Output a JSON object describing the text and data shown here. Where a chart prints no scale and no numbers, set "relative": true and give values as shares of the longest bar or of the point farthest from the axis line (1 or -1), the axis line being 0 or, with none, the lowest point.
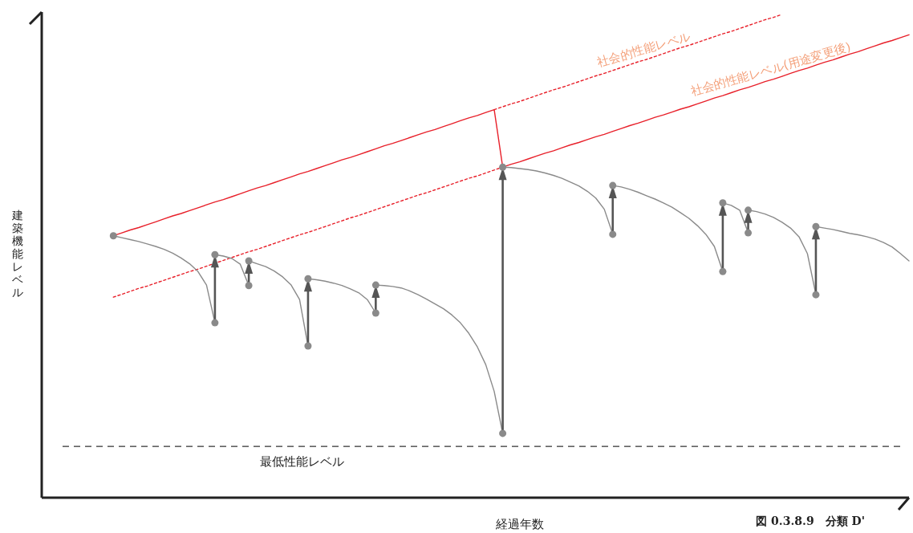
{
  "chart_data": {
    "type": "line",
    "relative": true,
    "xlabel": "経過年数",
    "ylabel": "建築機能レベル",
    "categories": [
      null,
      null,
      null,
      null,
      null,
      null,
      null,
      null,
      null,
      null,
      null,
      null,
      null,
      null,
      null,
      null,
      null,
      null,
      null,
      null,
      null,
      null,
      null,
      null,
      null,
      null,
      null,
      null,
      null,
      null,
      null,
      null,
      null,
      null,
      null,
      null,
      null,
      null,
      null,
      null,
      null,
      null,
      null,
      null,
      null,
      null,
      null,
      null,
      null,
      null,
      null,
      null,
      null,
      null,
      null,
      null,
      null,
      null,
      null,
      null,
      null,
      null,
      null,
      null,
      null,
      null,
      null,
      null,
      null,
      null,
      null,
      null,
      null,
      null,
      null,
      null,
      null,
      null,
      null,
      null,
      null,
      null,
      null,
      null,
      null,
      null,
      null,
      null,
      null,
      null,
      null,
      null,
      null,
      null,
      null,
      null,
      null,
      null,
      null,
      null,
      null
    ],
    "series": [
      {
        "name": "社会的性能レベル(用途変更後)",
        "color": "#e8202a",
        "line_style": "solid",
        "values": [
          null,
          null,
          null,
          null,
          null,
          null,
          0.542,
          0.548,
          0.554,
          0.559,
          0.565,
          0.571,
          0.577,
          0.583,
          0.588,
          0.594,
          0.6,
          0.606,
          0.612,
          0.617,
          0.623,
          0.629,
          0.635,
          0.641,
          0.646,
          0.652,
          0.658,
          0.664,
          0.67,
          0.675,
          0.681,
          0.687,
          0.693,
          0.699,
          0.704,
          0.71,
          0.716,
          0.722,
          0.728,
          0.733,
          0.739,
          0.745,
          0.751,
          0.757,
          0.762,
          0.768,
          0.774,
          0.78,
          0.786,
          0.791,
          0.797,
          0.803,
          0.684,
          0.69,
          0.695,
          0.701,
          0.707,
          0.713,
          0.718,
          0.724,
          0.73,
          0.735,
          0.741,
          0.747,
          0.752,
          0.758,
          0.764,
          0.77,
          0.775,
          0.781,
          0.787,
          0.792,
          0.798,
          0.804,
          0.809,
          0.815,
          0.821,
          0.827,
          0.832,
          0.838,
          0.844,
          0.849,
          0.855,
          0.861,
          0.866,
          0.872,
          0.878,
          0.884,
          0.889,
          0.895,
          0.901,
          0.906,
          0.912,
          0.918,
          0.923,
          0.929,
          0.935,
          0.941,
          0.946,
          0.952,
          0.958
        ]
      },
      {
        "name": "社会的性能レベル",
        "color": "#e8202a",
        "line_style": "dotted",
        "values": [
          null,
          null,
          null,
          null,
          null,
          null,
          null,
          null,
          null,
          null,
          null,
          null,
          null,
          null,
          null,
          null,
          null,
          null,
          null,
          null,
          null,
          null,
          null,
          null,
          null,
          null,
          null,
          null,
          null,
          null,
          null,
          null,
          null,
          null,
          null,
          null,
          null,
          null,
          null,
          null,
          null,
          null,
          null,
          null,
          null,
          null,
          null,
          null,
          null,
          null,
          null,
          0.803,
          0.809,
          0.815,
          0.82,
          0.826,
          0.832,
          0.838,
          0.844,
          0.849,
          0.855,
          0.861,
          0.867,
          0.873,
          0.878,
          0.884,
          0.89,
          0.896,
          0.902,
          0.907,
          0.913,
          0.919,
          0.925,
          0.931,
          0.936,
          0.942,
          0.948,
          0.954,
          0.96,
          0.965,
          0.971,
          0.977,
          0.983,
          0.989,
          0.994,
          1.0,
          null,
          null,
          null,
          null,
          null,
          null,
          null,
          null,
          null,
          null,
          null,
          null,
          null,
          null,
          null
        ]
      },
      {
        "color": "#e8202a",
        "line_style": "dotted",
        "values": [
          null,
          null,
          null,
          null,
          null,
          null,
          0.415,
          0.421,
          0.427,
          0.433,
          0.438,
          0.444,
          0.45,
          0.456,
          0.462,
          0.468,
          0.473,
          0.479,
          0.485,
          0.491,
          0.497,
          0.503,
          0.509,
          0.514,
          0.52,
          0.526,
          0.532,
          0.538,
          0.544,
          0.549,
          0.555,
          0.561,
          0.567,
          0.573,
          0.579,
          0.584,
          0.59,
          0.596,
          0.602,
          0.608,
          0.614,
          0.62,
          0.626,
          0.631,
          0.637,
          0.643,
          0.649,
          0.655,
          0.661,
          0.666,
          0.672,
          0.678,
          0.684,
          null,
          null,
          null,
          null,
          null,
          null,
          null,
          null,
          null,
          null,
          null,
          null,
          null,
          null,
          null,
          null,
          null,
          null,
          null,
          null,
          null,
          null,
          null,
          null,
          null,
          null,
          null,
          null,
          null,
          null,
          null,
          null,
          null,
          null,
          null,
          null,
          null,
          null,
          null,
          null,
          null,
          null,
          null,
          null,
          null,
          null,
          null,
          null
        ]
      },
      {
        "color": "#8a8a8a",
        "values": [
          null,
          null,
          null,
          null,
          null,
          null,
          0.542,
          0.538,
          0.534,
          0.53,
          0.525,
          0.52,
          0.514,
          0.506,
          0.496,
          0.484,
          0.468,
          0.44,
          0.362,
          null,
          null,
          null,
          null,
          null,
          null,
          null,
          null,
          null,
          null,
          null,
          null,
          null,
          null,
          null,
          null,
          null,
          null,
          null,
          null,
          null,
          null,
          null,
          null,
          null,
          null,
          null,
          null,
          null,
          null,
          null,
          null,
          null,
          null,
          null,
          null,
          null,
          null,
          null,
          null,
          null,
          null,
          null,
          null,
          null,
          null,
          null,
          null,
          null,
          null,
          null,
          null,
          null,
          null,
          null,
          null,
          null,
          null,
          null,
          null,
          null,
          null,
          null,
          null,
          null,
          null,
          null,
          null,
          null,
          null,
          null,
          null,
          null,
          null,
          null,
          null,
          null,
          null,
          null,
          null,
          null,
          null
        ]
      },
      {
        "color": "#8a8a8a",
        "values": [
          null,
          null,
          null,
          null,
          null,
          null,
          null,
          null,
          null,
          null,
          null,
          null,
          null,
          null,
          null,
          null,
          null,
          null,
          0.503,
          0.5,
          0.495,
          0.483,
          0.439,
          null,
          null,
          null,
          null,
          null,
          null,
          null,
          null,
          null,
          null,
          null,
          null,
          null,
          null,
          null,
          null,
          null,
          null,
          null,
          null,
          null,
          null,
          null,
          null,
          null,
          null,
          null,
          null,
          null,
          null,
          null,
          null,
          null,
          null,
          null,
          null,
          null,
          null,
          null,
          null,
          null,
          null,
          null,
          null,
          null,
          null,
          null,
          null,
          null,
          null,
          null,
          null,
          null,
          null,
          null,
          null,
          null,
          null,
          null,
          null,
          null,
          null,
          null,
          null,
          null,
          null,
          null,
          null,
          null,
          null,
          null,
          null,
          null,
          null,
          null,
          null,
          null,
          null
        ]
      },
      {
        "color": "#8a8a8a",
        "values": [
          null,
          null,
          null,
          null,
          null,
          null,
          null,
          null,
          null,
          null,
          null,
          null,
          null,
          null,
          null,
          null,
          null,
          null,
          null,
          null,
          null,
          null,
          0.49,
          0.484,
          0.478,
          0.469,
          0.457,
          0.44,
          0.41,
          0.314,
          null,
          null,
          null,
          null,
          null,
          null,
          null,
          null,
          null,
          null,
          null,
          null,
          null,
          null,
          null,
          null,
          null,
          null,
          null,
          null,
          null,
          null,
          null,
          null,
          null,
          null,
          null,
          null,
          null,
          null,
          null,
          null,
          null,
          null,
          null,
          null,
          null,
          null,
          null,
          null,
          null,
          null,
          null,
          null,
          null,
          null,
          null,
          null,
          null,
          null,
          null,
          null,
          null,
          null,
          null,
          null,
          null,
          null,
          null,
          null,
          null,
          null,
          null,
          null,
          null,
          null,
          null,
          null,
          null,
          null,
          null
        ]
      },
      {
        "color": "#8a8a8a",
        "values": [
          null,
          null,
          null,
          null,
          null,
          null,
          null,
          null,
          null,
          null,
          null,
          null,
          null,
          null,
          null,
          null,
          null,
          null,
          null,
          null,
          null,
          null,
          null,
          null,
          null,
          null,
          null,
          null,
          null,
          0.453,
          0.451,
          0.448,
          0.444,
          0.439,
          0.432,
          0.424,
          0.41,
          0.382,
          null,
          null,
          null,
          null,
          null,
          null,
          null,
          null,
          null,
          null,
          null,
          null,
          null,
          null,
          null,
          null,
          null,
          null,
          null,
          null,
          null,
          null,
          null,
          null,
          null,
          null,
          null,
          null,
          null,
          null,
          null,
          null,
          null,
          null,
          null,
          null,
          null,
          null,
          null,
          null,
          null,
          null,
          null,
          null,
          null,
          null,
          null,
          null,
          null,
          null,
          null,
          null,
          null,
          null,
          null,
          null,
          null,
          null,
          null,
          null,
          null,
          null,
          null
        ]
      },
      {
        "color": "#8a8a8a",
        "values": [
          null,
          null,
          null,
          null,
          null,
          null,
          null,
          null,
          null,
          null,
          null,
          null,
          null,
          null,
          null,
          null,
          null,
          null,
          null,
          null,
          null,
          null,
          null,
          null,
          null,
          null,
          null,
          null,
          null,
          null,
          null,
          null,
          null,
          null,
          null,
          null,
          null,
          0.44,
          0.439,
          0.437,
          0.434,
          0.428,
          0.42,
          0.411,
          0.401,
          0.391,
          0.378,
          0.362,
          0.34,
          0.312,
          0.275,
          0.22,
          0.133,
          null,
          null,
          null,
          null,
          null,
          null,
          null,
          null,
          null,
          null,
          null,
          null,
          null,
          null,
          null,
          null,
          null,
          null,
          null,
          null,
          null,
          null,
          null,
          null,
          null,
          null,
          null,
          null,
          null,
          null,
          null,
          null,
          null,
          null,
          null,
          null,
          null,
          null,
          null,
          null,
          null,
          null,
          null,
          null,
          null,
          null,
          null,
          null
        ]
      },
      {
        "color": "#8a8a8a",
        "values": [
          null,
          null,
          null,
          null,
          null,
          null,
          null,
          null,
          null,
          null,
          null,
          null,
          null,
          null,
          null,
          null,
          null,
          null,
          null,
          null,
          null,
          null,
          null,
          null,
          null,
          null,
          null,
          null,
          null,
          null,
          null,
          null,
          null,
          null,
          null,
          null,
          null,
          null,
          null,
          null,
          null,
          null,
          null,
          null,
          null,
          null,
          null,
          null,
          null,
          null,
          null,
          null,
          0.684,
          0.683,
          0.681,
          0.679,
          0.676,
          0.672,
          0.667,
          0.661,
          0.653,
          0.645,
          0.634,
          0.62,
          0.597,
          0.545,
          null,
          null,
          null,
          null,
          null,
          null,
          null,
          null,
          null,
          null,
          null,
          null,
          null,
          null,
          null,
          null,
          null,
          null,
          null,
          null,
          null,
          null,
          null,
          null,
          null,
          null,
          null,
          null,
          null,
          null,
          null,
          null,
          null,
          null,
          null
        ]
      },
      {
        "color": "#8a8a8a",
        "values": [
          null,
          null,
          null,
          null,
          null,
          null,
          null,
          null,
          null,
          null,
          null,
          null,
          null,
          null,
          null,
          null,
          null,
          null,
          null,
          null,
          null,
          null,
          null,
          null,
          null,
          null,
          null,
          null,
          null,
          null,
          null,
          null,
          null,
          null,
          null,
          null,
          null,
          null,
          null,
          null,
          null,
          null,
          null,
          null,
          null,
          null,
          null,
          null,
          null,
          null,
          null,
          null,
          null,
          null,
          null,
          null,
          null,
          null,
          null,
          null,
          null,
          null,
          null,
          null,
          null,
          0.646,
          0.643,
          0.638,
          0.632,
          0.625,
          0.618,
          0.61,
          0.601,
          0.59,
          0.578,
          0.563,
          0.545,
          0.52,
          0.468,
          null,
          null,
          null,
          null,
          null,
          null,
          null,
          null,
          null,
          null,
          null,
          null,
          null,
          null,
          null,
          null,
          null,
          null,
          null,
          null,
          null,
          null
        ]
      },
      {
        "color": "#8a8a8a",
        "values": [
          null,
          null,
          null,
          null,
          null,
          null,
          null,
          null,
          null,
          null,
          null,
          null,
          null,
          null,
          null,
          null,
          null,
          null,
          null,
          null,
          null,
          null,
          null,
          null,
          null,
          null,
          null,
          null,
          null,
          null,
          null,
          null,
          null,
          null,
          null,
          null,
          null,
          null,
          null,
          null,
          null,
          null,
          null,
          null,
          null,
          null,
          null,
          null,
          null,
          null,
          null,
          null,
          null,
          null,
          null,
          null,
          null,
          null,
          null,
          null,
          null,
          null,
          null,
          null,
          null,
          null,
          null,
          null,
          null,
          null,
          null,
          null,
          null,
          null,
          null,
          null,
          null,
          null,
          0.61,
          0.605,
          0.595,
          0.548,
          null,
          null,
          null,
          null,
          null,
          null,
          null,
          null,
          null,
          null,
          null,
          null,
          null,
          null,
          null,
          null,
          null,
          null,
          null
        ]
      },
      {
        "color": "#8a8a8a",
        "values": [
          null,
          null,
          null,
          null,
          null,
          null,
          null,
          null,
          null,
          null,
          null,
          null,
          null,
          null,
          null,
          null,
          null,
          null,
          null,
          null,
          null,
          null,
          null,
          null,
          null,
          null,
          null,
          null,
          null,
          null,
          null,
          null,
          null,
          null,
          null,
          null,
          null,
          null,
          null,
          null,
          null,
          null,
          null,
          null,
          null,
          null,
          null,
          null,
          null,
          null,
          null,
          null,
          null,
          null,
          null,
          null,
          null,
          null,
          null,
          null,
          null,
          null,
          null,
          null,
          null,
          null,
          null,
          null,
          null,
          null,
          null,
          null,
          null,
          null,
          null,
          null,
          null,
          null,
          null,
          null,
          null,
          0.595,
          0.592,
          0.587,
          0.58,
          0.57,
          0.558,
          0.54,
          0.505,
          0.42,
          null,
          null,
          null,
          null,
          null,
          null,
          null,
          null,
          null,
          null,
          null
        ]
      },
      {
        "color": "#8a8a8a",
        "values": [
          null,
          null,
          null,
          null,
          null,
          null,
          null,
          null,
          null,
          null,
          null,
          null,
          null,
          null,
          null,
          null,
          null,
          null,
          null,
          null,
          null,
          null,
          null,
          null,
          null,
          null,
          null,
          null,
          null,
          null,
          null,
          null,
          null,
          null,
          null,
          null,
          null,
          null,
          null,
          null,
          null,
          null,
          null,
          null,
          null,
          null,
          null,
          null,
          null,
          null,
          null,
          null,
          null,
          null,
          null,
          null,
          null,
          null,
          null,
          null,
          null,
          null,
          null,
          null,
          null,
          null,
          null,
          null,
          null,
          null,
          null,
          null,
          null,
          null,
          null,
          null,
          null,
          null,
          null,
          null,
          null,
          null,
          null,
          null,
          null,
          null,
          null,
          null,
          null,
          0.561,
          0.558,
          0.555,
          0.551,
          0.547,
          0.544,
          0.54,
          0.535,
          0.528,
          0.519,
          0.505,
          0.49
        ]
      }
    ],
    "ref_lines": [
      {
        "axis": "y",
        "value": 0.106,
        "label": "最低性能レベル",
        "line_style": "dashed",
        "color": "#333333"
      }
    ],
    "annotations": [
      "図 0.3.8.9　分類 D'"
    ]
  }
}
